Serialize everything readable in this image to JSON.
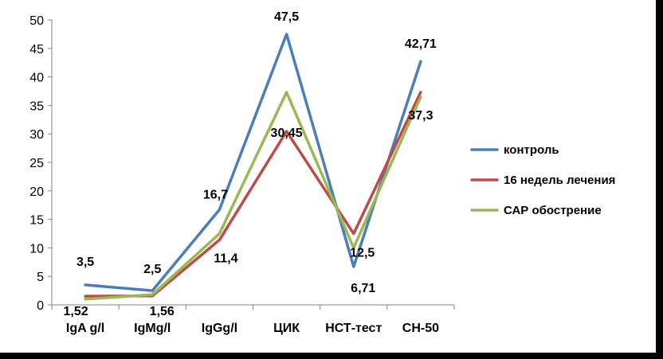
{
  "chart_data": {
    "type": "line",
    "categories": [
      "IgA g/l",
      "IgMg/l",
      "IgGg/l",
      "ЦИК",
      "НСТ-тест",
      "СН-50"
    ],
    "ylim": [
      0,
      50
    ],
    "yticks": [
      0,
      5,
      10,
      15,
      20,
      25,
      30,
      35,
      40,
      45,
      50
    ],
    "grid": false,
    "legend_position": "right",
    "series": [
      {
        "name": "контроль",
        "color": "#4a7ebb",
        "values": [
          3.5,
          2.5,
          16.7,
          47.5,
          6.71,
          42.71
        ]
      },
      {
        "name": "16 недель лечения",
        "color": "#be4b48",
        "values": [
          1.52,
          1.56,
          11.4,
          30.45,
          12.5,
          37.3
        ]
      },
      {
        "name": "САР обострение",
        "color": "#98b954",
        "values": [
          1.0,
          1.8,
          12.5,
          37.3,
          10.0,
          36.5
        ]
      }
    ],
    "data_labels": [
      {
        "text": "3,5",
        "category": 0,
        "value": 3.5,
        "placement": "above"
      },
      {
        "text": "1,52",
        "category": 0,
        "value": 1.52,
        "placement": "below"
      },
      {
        "text": "2,5",
        "category": 1,
        "value": 2.5,
        "placement": "above"
      },
      {
        "text": "1,56",
        "category": 1,
        "value": 1.56,
        "placement": "below"
      },
      {
        "text": "16,7",
        "category": 2,
        "value": 16.7,
        "placement": "above"
      },
      {
        "text": "11,4",
        "category": 2,
        "value": 11.4,
        "placement": "below"
      },
      {
        "text": "47,5",
        "category": 3,
        "value": 47.5,
        "placement": "above"
      },
      {
        "text": "30,45",
        "category": 3,
        "value": 30.45,
        "placement": "on"
      },
      {
        "text": "12,5",
        "category": 4,
        "value": 12.5,
        "placement": "below"
      },
      {
        "text": "6,71",
        "category": 4,
        "value": 6.71,
        "placement": "below"
      },
      {
        "text": "42,71",
        "category": 5,
        "value": 42.71,
        "placement": "above"
      },
      {
        "text": "37,3",
        "category": 5,
        "value": 37.3,
        "placement": "below"
      }
    ]
  }
}
